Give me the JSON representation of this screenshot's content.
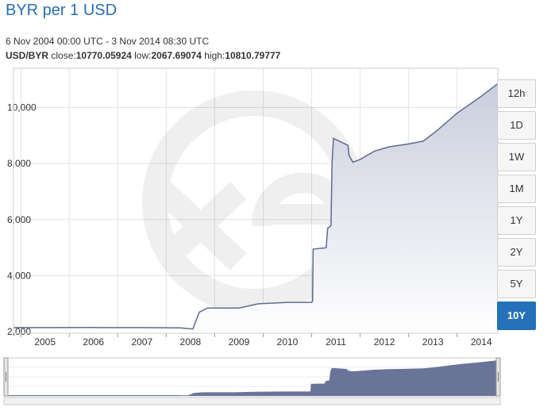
{
  "header": {
    "title": "BYR per 1 USD",
    "range": "6 Nov 2004 00:00 UTC - 3 Nov 2014 08:30 UTC",
    "pair": "USD/BYR",
    "close_label": "close:",
    "close": "10770.05924",
    "low_label": "low:",
    "low": "2067.69074",
    "high_label": "high:",
    "high": "10810.79777"
  },
  "ranges": {
    "buttons": [
      "12h",
      "1D",
      "1W",
      "1M",
      "1Y",
      "2Y",
      "5Y",
      "10Y"
    ],
    "selected": "10Y"
  },
  "colors": {
    "line": "#5f6a90",
    "area_top": "#c9cedd",
    "area_bottom": "#ffffff",
    "navigator_fill": "#6a7499",
    "accent": "#2471b9"
  },
  "chart_data": {
    "type": "area",
    "title": "BYR per 1 USD",
    "ylim": [
      1950,
      11400
    ],
    "xlim": [
      2004.85,
      2014.84
    ],
    "y_ticks": [
      "2,000",
      "4,000",
      "6,000",
      "8,000",
      "10,000"
    ],
    "x_ticks": [
      "2005",
      "2006",
      "2007",
      "2008",
      "2009",
      "2010",
      "2011",
      "2012",
      "2013",
      "2014"
    ],
    "grid": true,
    "series": [
      {
        "x": [
          2004.85,
          2005.5,
          2006.5,
          2007.5,
          2008.3,
          2008.55,
          2008.68,
          2008.85,
          2008.9,
          2009.0,
          2009.5,
          2009.9,
          2010.5,
          2011.0,
          2011.02,
          2011.03,
          2011.3,
          2011.33,
          2011.38,
          2011.4,
          2011.42,
          2011.45,
          2011.75,
          2011.77,
          2011.85,
          2012.0,
          2012.3,
          2012.6,
          2013.0,
          2013.3,
          2013.6,
          2014.0,
          2014.5,
          2014.84
        ],
        "y": [
          2150,
          2150,
          2155,
          2150,
          2140,
          2100,
          2700,
          2850,
          2850,
          2850,
          2850,
          3000,
          3050,
          3050,
          3100,
          4950,
          5000,
          5700,
          5750,
          5800,
          8000,
          8900,
          8650,
          8300,
          8050,
          8150,
          8450,
          8600,
          8700,
          8800,
          9200,
          9800,
          10400,
          10850
        ]
      }
    ]
  }
}
